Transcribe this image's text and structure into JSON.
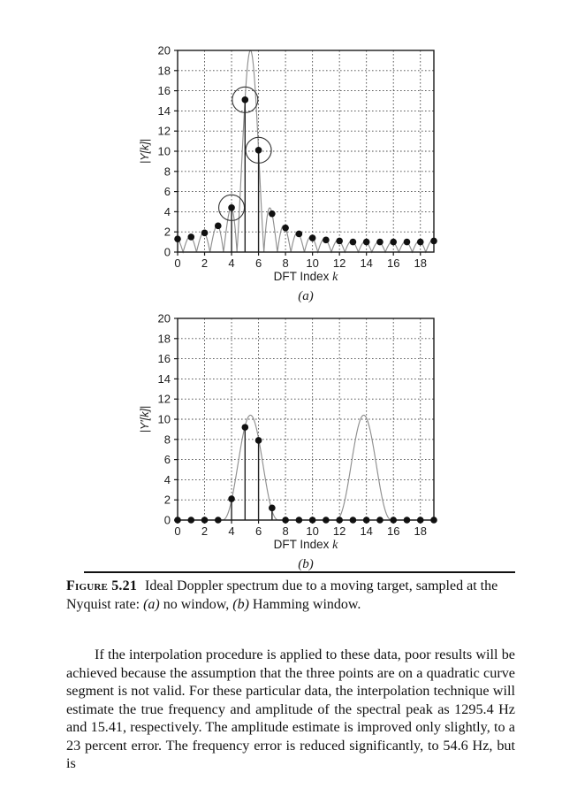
{
  "page": {
    "background": "#ffffff"
  },
  "colors": {
    "curve": "#8f8f8f",
    "point": "#111111",
    "stem": "#222222",
    "grid": "#4a4a4a",
    "frame": "#1a1a1a",
    "text": "#1c1c1c"
  },
  "figure": {
    "caption": {
      "label": "Figure 5.21",
      "seg1": "Ideal Doppler spectrum due to a moving target, sampled at the Nyquist rate: ",
      "marker_a": "(a)",
      "seg2": " no window, ",
      "marker_b": "(b)",
      "seg3": " Hamming window."
    }
  },
  "body_text": "If the interpolation procedure is applied to these data, poor results will be achieved because the assumption that the three points are on a quadratic curve segment is not valid. For these particular data, the interpolation technique will estimate the true frequency and amplitude of the spectral peak as 1295.4 Hz and 15.41, respectively. The amplitude estimate is improved only slightly, to a 23 percent error. The frequency error is reduced significantly, to 54.6 Hz, but is",
  "chart_data": [
    {
      "type": "scatter",
      "subtype": "DFT magnitude samples with continuous interpolated spectrum (stem plot)",
      "title": "",
      "xlabel": "DFT Index",
      "xlabel_italic": "k",
      "ylabel": "|Y[k]|",
      "panel_label": "(a)",
      "x": [
        0,
        1,
        2,
        3,
        4,
        5,
        6,
        7,
        8,
        9,
        10,
        11,
        12,
        13,
        14,
        15,
        16,
        17,
        18,
        19
      ],
      "values": [
        1.3,
        1.5,
        1.9,
        2.6,
        4.4,
        15.1,
        10.1,
        3.8,
        2.4,
        1.8,
        1.4,
        1.2,
        1.1,
        1.0,
        1.0,
        1.0,
        1.0,
        1.0,
        1.0,
        1.1
      ],
      "stems_at": [
        4,
        5,
        6
      ],
      "circled_points": [
        4,
        5,
        6
      ],
      "xticks": [
        0,
        2,
        4,
        6,
        8,
        10,
        12,
        14,
        16,
        18
      ],
      "yticks": [
        0,
        2,
        4,
        6,
        8,
        10,
        12,
        14,
        16,
        18,
        20
      ],
      "xlim": [
        0,
        19
      ],
      "ylim": [
        0,
        20
      ],
      "grid": "dashed, both axes, at labeled ticks",
      "legend": "none",
      "curve": {
        "kind": "dirichlet",
        "amplitude": 20,
        "center": 5.4,
        "N": 20
      }
    },
    {
      "type": "scatter",
      "subtype": "DFT magnitude samples with continuous interpolated spectrum (stem plot)",
      "title": "",
      "xlabel": "DFT Index",
      "xlabel_italic": "k",
      "ylabel": "|Y′[k]|",
      "panel_label": "(b)",
      "x": [
        0,
        1,
        2,
        3,
        4,
        5,
        6,
        7,
        8,
        9,
        10,
        11,
        12,
        13,
        14,
        15,
        16,
        17,
        18,
        19
      ],
      "values": [
        0,
        0,
        0,
        0,
        2.1,
        9.2,
        7.9,
        1.2,
        0,
        0,
        0,
        0,
        0,
        0,
        0,
        0,
        0,
        0,
        0,
        0
      ],
      "stems_at": [
        4,
        5,
        6,
        7
      ],
      "circled_points": [],
      "xticks": [
        0,
        2,
        4,
        6,
        8,
        10,
        12,
        14,
        16,
        18
      ],
      "yticks": [
        0,
        2,
        4,
        6,
        8,
        10,
        12,
        14,
        16,
        18,
        20
      ],
      "xlim": [
        0,
        19
      ],
      "ylim": [
        0,
        20
      ],
      "grid": "dashed, both axes, at labeled ticks",
      "legend": "none",
      "curve": {
        "kind": "cos_power",
        "amplitude": 10.4,
        "center": 5.4,
        "halfwidth": 2.1,
        "power": 2.4
      }
    }
  ]
}
